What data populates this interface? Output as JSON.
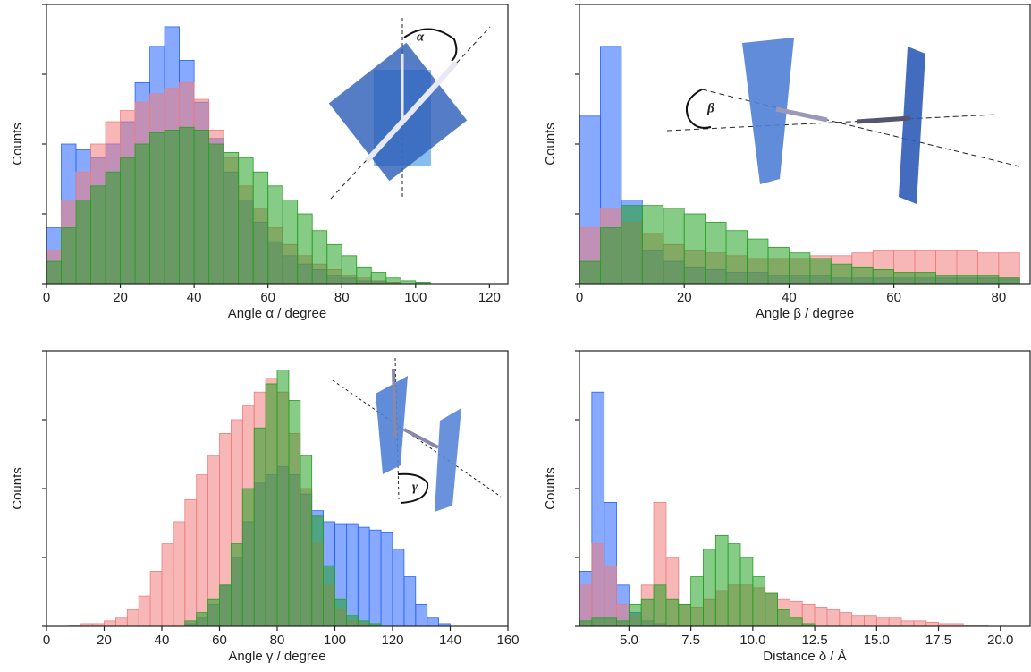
{
  "chart_data": [
    {
      "type": "histogram",
      "xlabel": "Angle α / degree",
      "ylabel": "Counts",
      "annotation": "α",
      "xlim": [
        0,
        125
      ],
      "xticks": [
        0,
        20,
        40,
        60,
        80,
        100,
        120
      ],
      "ylim": [
        0,
        100
      ],
      "yticks": [
        0,
        25,
        50,
        75,
        100
      ],
      "bins": [
        0,
        4,
        8,
        12,
        16,
        20,
        24,
        28,
        32,
        36,
        40,
        44,
        48,
        52,
        56,
        60,
        64,
        68,
        72,
        76,
        80,
        84,
        88,
        92,
        96,
        100,
        104,
        108,
        112,
        116,
        120,
        124
      ],
      "series": [
        {
          "color": "#2563ff",
          "values": [
            20,
            50,
            48,
            45,
            50,
            58,
            72,
            85,
            92,
            80,
            65,
            52,
            40,
            30,
            22,
            15,
            10,
            7,
            5,
            3,
            2,
            1,
            1,
            0.5,
            0,
            0,
            0,
            0,
            0,
            0,
            0
          ]
        },
        {
          "color": "#f07c7c",
          "values": [
            12,
            30,
            40,
            50,
            58,
            62,
            65,
            68,
            70,
            72,
            66,
            55,
            45,
            35,
            27,
            20,
            14,
            10,
            7,
            5,
            3,
            2,
            1,
            0.5,
            0,
            0,
            0,
            0,
            0,
            0,
            0
          ]
        },
        {
          "color": "#22a022",
          "values": [
            8,
            20,
            30,
            35,
            40,
            45,
            50,
            54,
            55,
            56,
            55,
            50,
            47,
            45,
            40,
            35,
            30,
            25,
            19,
            14,
            10,
            6,
            4,
            2,
            1,
            0.5,
            0,
            0,
            0,
            0,
            0
          ]
        }
      ]
    },
    {
      "type": "histogram",
      "xlabel": "Angle β / degree",
      "ylabel": "Counts",
      "annotation": "β",
      "xlim": [
        0,
        86
      ],
      "xticks": [
        0,
        20,
        40,
        60,
        80
      ],
      "ylim": [
        0,
        100
      ],
      "yticks": [
        0,
        25,
        50,
        75,
        100
      ],
      "bins": [
        0,
        4,
        8,
        12,
        16,
        20,
        24,
        28,
        32,
        36,
        40,
        44,
        48,
        52,
        56,
        60,
        64,
        68,
        72,
        76,
        80,
        84
      ],
      "series": [
        {
          "color": "#2563ff",
          "values": [
            60,
            85,
            30,
            12,
            8,
            6,
            5,
            4,
            4,
            3,
            3,
            3,
            2,
            2,
            2,
            2,
            2,
            2,
            2,
            2,
            2
          ]
        },
        {
          "color": "#f07c7c",
          "values": [
            20,
            27,
            22,
            18,
            14,
            12,
            11,
            10,
            9,
            9,
            9,
            10,
            10,
            11,
            12,
            12,
            12,
            12,
            12,
            11,
            11
          ]
        },
        {
          "color": "#22a022",
          "values": [
            8,
            20,
            28,
            28,
            27,
            25,
            22,
            19,
            16,
            13,
            11,
            9,
            7,
            6,
            5,
            4,
            4,
            3,
            3,
            3,
            2
          ]
        }
      ]
    },
    {
      "type": "histogram",
      "xlabel": "Angle γ / degree",
      "ylabel": "Counts",
      "annotation": "γ",
      "xlim": [
        0,
        160
      ],
      "xticks": [
        0,
        20,
        40,
        60,
        80,
        100,
        120,
        140,
        160
      ],
      "ylim": [
        0,
        100
      ],
      "yticks": [
        0,
        25,
        50,
        75,
        100
      ],
      "bins": [
        8,
        12,
        16,
        20,
        24,
        28,
        32,
        36,
        40,
        44,
        48,
        52,
        56,
        60,
        64,
        68,
        72,
        76,
        80,
        84,
        88,
        92,
        96,
        100,
        104,
        108,
        112,
        116,
        120,
        124,
        128,
        132,
        136,
        140,
        144
      ],
      "series": [
        {
          "color": "#2563ff",
          "values": [
            0,
            0,
            0,
            0,
            0,
            0,
            0,
            0,
            0,
            0,
            1,
            3,
            8,
            15,
            25,
            38,
            52,
            55,
            58,
            55,
            48,
            42,
            38,
            37,
            37,
            36,
            35,
            34,
            28,
            18,
            8,
            3,
            1,
            0
          ]
        },
        {
          "color": "#f07c7c",
          "values": [
            0.5,
            1,
            1,
            2,
            3,
            6,
            11,
            20,
            30,
            38,
            46,
            55,
            62,
            70,
            75,
            80,
            85,
            90,
            85,
            70,
            50,
            30,
            15,
            6,
            2,
            1,
            0,
            0,
            0,
            0,
            0,
            0,
            0,
            0
          ]
        },
        {
          "color": "#22a022",
          "values": [
            0,
            0,
            0,
            0,
            0,
            0,
            0,
            0,
            0,
            0,
            2,
            5,
            10,
            15,
            30,
            50,
            72,
            88,
            93,
            82,
            62,
            40,
            22,
            10,
            4,
            2,
            1,
            0,
            0,
            0,
            0,
            0,
            0,
            0
          ]
        }
      ]
    },
    {
      "type": "histogram",
      "xlabel": "Distance δ / Å",
      "ylabel": "Counts",
      "xlim": [
        3.0,
        21.2
      ],
      "xticks": [
        {
          "value": 5,
          "label": "5.0"
        },
        {
          "value": 7.5,
          "label": "7.5"
        },
        {
          "value": 10,
          "label": "10.0"
        },
        {
          "value": 12.5,
          "label": "12.5"
        },
        {
          "value": 15,
          "label": "15.0"
        },
        {
          "value": 17.5,
          "label": "17.5"
        },
        {
          "value": 20,
          "label": "20.0"
        }
      ],
      "ylim": [
        0,
        100
      ],
      "yticks": [
        0,
        25,
        50,
        75,
        100
      ],
      "bins": [
        3,
        3.5,
        4,
        4.5,
        5,
        5.5,
        6,
        6.5,
        7,
        7.5,
        8,
        8.5,
        9,
        9.5,
        10,
        10.5,
        11,
        11.5,
        12,
        12.5,
        13,
        13.5,
        14,
        14.5,
        15,
        15.5,
        16,
        16.5,
        17,
        17.5,
        18,
        18.5,
        19,
        19.5,
        20,
        20.5,
        21
      ],
      "series": [
        {
          "color": "#2563ff",
          "values": [
            20,
            85,
            45,
            15,
            5,
            2,
            1,
            0.5,
            0.5,
            0.5,
            0.5,
            0.5,
            0.5,
            0.5,
            0.5,
            0.5,
            0,
            0,
            0,
            0,
            0,
            0,
            0,
            0,
            0,
            0,
            0,
            0,
            0,
            0,
            0,
            0,
            0,
            0,
            0,
            0
          ]
        },
        {
          "color": "#f07c7c",
          "values": [
            15,
            30,
            22,
            8,
            4,
            15,
            45,
            25,
            8,
            7,
            10,
            13,
            15,
            15,
            14,
            12,
            10,
            9,
            8,
            7,
            6,
            5,
            4,
            4,
            3,
            3,
            2,
            2,
            1.5,
            1,
            1,
            0.5,
            0.5,
            0,
            0,
            0
          ]
        },
        {
          "color": "#22a022",
          "values": [
            2,
            3,
            3,
            2,
            8,
            10,
            15,
            10,
            8,
            18,
            28,
            33,
            30,
            25,
            18,
            12,
            6,
            3,
            1,
            0,
            0,
            0,
            0,
            0,
            0,
            0,
            0,
            0,
            0,
            0,
            0,
            0,
            0,
            0,
            0,
            0
          ]
        }
      ]
    }
  ]
}
